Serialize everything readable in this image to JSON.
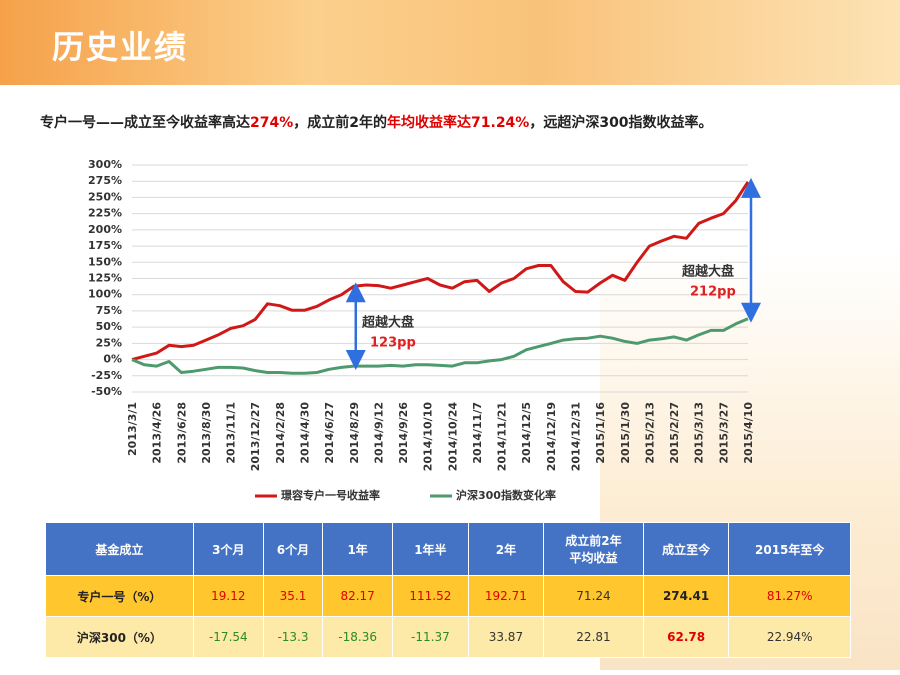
{
  "header": {
    "title": "历史业绩"
  },
  "subtitle": [
    {
      "text": "专户一号——成立至今收益率高达",
      "color": "#222222"
    },
    {
      "text": "274%",
      "color": "#e00000"
    },
    {
      "text": "，成立前2年的",
      "color": "#222222"
    },
    {
      "text": "年均收益率达71.24%",
      "color": "#e00000"
    },
    {
      "text": "，远超沪深300指数收益率。",
      "color": "#222222"
    }
  ],
  "chart_data": {
    "type": "line",
    "categories": [
      "2013/3/1",
      null,
      "2013/4/26",
      null,
      "2013/6/28",
      null,
      "2013/8/30",
      null,
      "2013/11/1",
      null,
      "2013/12/27",
      null,
      "2014/2/28",
      null,
      "2014/4/30",
      null,
      "2014/6/27",
      null,
      "2014/8/29",
      null,
      "2014/9/12",
      null,
      "2014/9/26",
      null,
      "2014/10/10",
      null,
      "2014/10/24",
      null,
      "2014/11/7",
      null,
      "2014/11/21",
      null,
      "2014/12/5",
      null,
      "2014/12/19",
      null,
      "2014/12/31",
      null,
      "2015/1/16",
      null,
      "2015/1/30",
      null,
      "2015/2/13",
      null,
      "2015/2/27",
      null,
      "2015/3/13",
      null,
      "2015/3/27",
      null,
      "2015/4/10"
    ],
    "series": [
      {
        "name": "璟容专户一号收益率",
        "color": "#d01818",
        "values": [
          0,
          5,
          10,
          22,
          20,
          22,
          30,
          38,
          48,
          52,
          62,
          86,
          83,
          76,
          76,
          82,
          92,
          100,
          113,
          115,
          114,
          110,
          115,
          120,
          125,
          115,
          110,
          120,
          122,
          105,
          118,
          125,
          140,
          145,
          145,
          120,
          105,
          104,
          118,
          130,
          122,
          150,
          175,
          183,
          190,
          187,
          210,
          218,
          225,
          245,
          274
        ]
      },
      {
        "name": "沪深300指数变化率",
        "color": "#4e9a6e",
        "values": [
          0,
          -8,
          -10,
          -3,
          -20,
          -18,
          -15,
          -12,
          -12,
          -13,
          -17,
          -20,
          -20,
          -21,
          -21,
          -20,
          -15,
          -12,
          -10,
          -10,
          -10,
          -9,
          -10,
          -8,
          -8,
          -9,
          -10,
          -5,
          -5,
          -2,
          0,
          5,
          15,
          20,
          25,
          30,
          32,
          33,
          36,
          33,
          28,
          25,
          30,
          32,
          35,
          30,
          38,
          45,
          45,
          55,
          63
        ]
      }
    ],
    "ylim": [
      -50,
      300
    ],
    "yticks": [
      {
        "value": -50,
        "label": "-50%"
      },
      {
        "value": -25,
        "label": "-25%"
      },
      {
        "value": 0,
        "label": "0%"
      },
      {
        "value": 25,
        "label": "25%"
      },
      {
        "value": 50,
        "label": "50%"
      },
      {
        "value": 75,
        "label": "75%"
      },
      {
        "value": 100,
        "label": "100%"
      },
      {
        "value": 125,
        "label": "125%"
      },
      {
        "value": 150,
        "label": "150%"
      },
      {
        "value": 175,
        "label": "175%"
      },
      {
        "value": 200,
        "label": "200%"
      },
      {
        "value": 225,
        "label": "225%"
      },
      {
        "value": 250,
        "label": "250%"
      },
      {
        "value": 275,
        "label": "275%"
      },
      {
        "value": 300,
        "label": "300%"
      }
    ],
    "grid": true,
    "legend": "bottom",
    "annotations": [
      {
        "label": "超越大盘",
        "value": "123pp"
      },
      {
        "label": "超越大盘",
        "value": "212pp"
      }
    ]
  },
  "table": {
    "header": [
      "基金成立",
      "3个月",
      "6个月",
      "1年",
      "1年半",
      "2年",
      "成立前2年\n平均收益",
      "成立至今",
      "2015年至今"
    ],
    "rows": [
      [
        "专户一号（%）",
        "19.12",
        "35.1",
        "82.17",
        "111.52",
        "192.71",
        "71.24",
        "274.41",
        "81.27%"
      ],
      [
        "沪深300（%）",
        "-17.54",
        "-13.3",
        "-18.36",
        "-11.37",
        "33.87",
        "22.81",
        "62.78",
        "22.94%"
      ]
    ]
  }
}
